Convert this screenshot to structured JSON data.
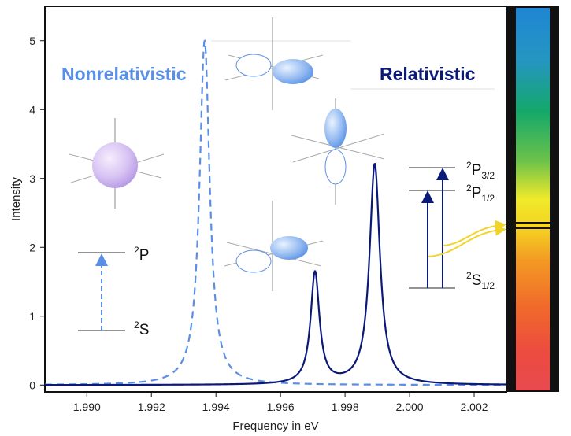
{
  "chart_data": {
    "type": "line",
    "title": "",
    "xlabel": "Frequency in eV",
    "ylabel": "Intensity",
    "xlim": [
      1.9887,
      2.003
    ],
    "ylim": [
      -0.1,
      5.5
    ],
    "xticks": [
      1.99,
      1.992,
      1.994,
      1.996,
      1.998,
      2.0,
      2.002
    ],
    "xtick_labels": [
      "1.990",
      "1.992",
      "1.994",
      "1.996",
      "1.998",
      "2.000",
      "2.002"
    ],
    "yticks": [
      0,
      1,
      2,
      3,
      4,
      5
    ],
    "ytick_labels": [
      "0",
      "1",
      "2",
      "3",
      "4",
      "5"
    ],
    "series": [
      {
        "name": "Nonrelativistic",
        "style": "dashed",
        "color": "#5b8fe6",
        "peaks": [
          {
            "center": 1.99365,
            "height": 5.0,
            "hwhm": 0.00019
          }
        ]
      },
      {
        "name": "Relativistic",
        "style": "solid",
        "color": "#0b1a78",
        "peaks": [
          {
            "center": 1.99707,
            "height": 1.62,
            "hwhm": 0.000165
          },
          {
            "center": 1.99892,
            "height": 3.2,
            "hwhm": 0.000195
          }
        ]
      }
    ],
    "annotations": {
      "nonrel_title": "Nonrelativistic",
      "rel_title": "Relativistic",
      "nonrel_upper_level": "P",
      "nonrel_upper_level_sup": "2",
      "nonrel_lower_level": "S",
      "nonrel_lower_level_sup": "2",
      "rel_level_p32": "P",
      "rel_level_p32_sup": "2",
      "rel_level_p32_sub": "3/2",
      "rel_level_p12": "P",
      "rel_level_p12_sup": "2",
      "rel_level_p12_sub": "1/2",
      "rel_level_s12": "S",
      "rel_level_s12_sup": "2",
      "rel_level_s12_sub": "1/2"
    },
    "grid": false,
    "legend": "none"
  },
  "colors": {
    "nonrel": "#5b8fe6",
    "rel": "#0b1a78",
    "sodium_line": "#f1d32a"
  },
  "icons": [
    "s-orbital-sphere-icon",
    "p-orbital-x-icon",
    "p-orbital-z-icon",
    "p-orbital-y-icon",
    "visible-spectrum-bar"
  ]
}
